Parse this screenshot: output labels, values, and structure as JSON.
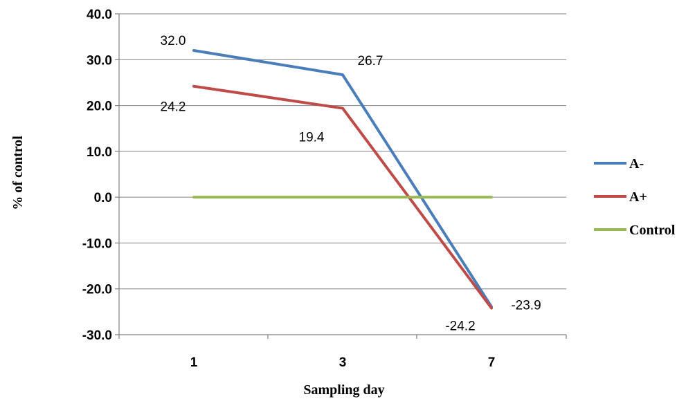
{
  "chart_data": {
    "type": "line",
    "categories": [
      "1",
      "3",
      "7"
    ],
    "series": [
      {
        "name": "A-",
        "color": "#4A7EBB",
        "values": [
          32.0,
          26.7,
          -23.9
        ],
        "labels": [
          "32.0",
          "26.7",
          "-23.9"
        ]
      },
      {
        "name": "A+",
        "color": "#BE4B48",
        "values": [
          24.2,
          19.4,
          -24.2
        ],
        "labels": [
          "24.2",
          "19.4",
          "-24.2"
        ]
      },
      {
        "name": "Control",
        "color": "#98B954",
        "values": [
          0,
          0,
          0
        ],
        "labels": [
          "",
          "",
          ""
        ]
      }
    ],
    "xlabel": "Sampling day",
    "ylabel": "% of control",
    "ylim": [
      -30,
      40
    ],
    "ytick_step": 10,
    "ytick_labels": [
      "40.0",
      "30.0",
      "20.0",
      "10.0",
      "0.0",
      "-10.0",
      "-20.0",
      "-30.0"
    ],
    "grid": true,
    "legend": "right"
  }
}
